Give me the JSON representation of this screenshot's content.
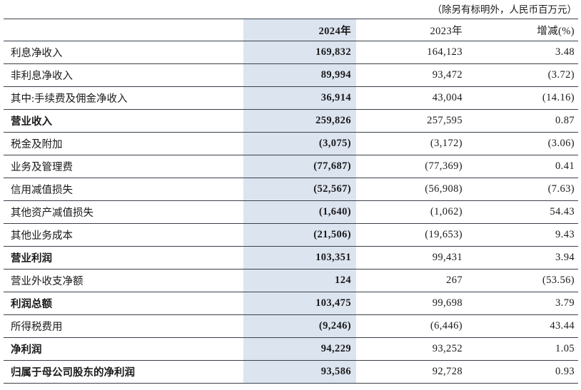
{
  "note": "（除另有标明外，人民币百万元）",
  "colors": {
    "highlight_2024_column": "#dce4f0",
    "grid_line": "#394049",
    "text": "#1a1a1a"
  },
  "table": {
    "label_header": "",
    "columns": [
      "2024年",
      "2023年",
      "增减(%)"
    ],
    "rows": [
      {
        "label": "利息净收入",
        "bold": false,
        "v2024": "169,832",
        "v2023": "164,123",
        "change": "3.48"
      },
      {
        "label": "非利息净收入",
        "bold": false,
        "v2024": "89,994",
        "v2023": "93,472",
        "change": "(3.72)"
      },
      {
        "label": "其中:手续费及佣金净收入",
        "bold": false,
        "v2024": "36,914",
        "v2023": "43,004",
        "change": "(14.16)"
      },
      {
        "label": "营业收入",
        "bold": true,
        "v2024": "259,826",
        "v2023": "257,595",
        "change": "0.87"
      },
      {
        "label": "税金及附加",
        "bold": false,
        "v2024": "(3,075)",
        "v2023": "(3,172)",
        "change": "(3.06)"
      },
      {
        "label": "业务及管理费",
        "bold": false,
        "v2024": "(77,687)",
        "v2023": "(77,369)",
        "change": "0.41"
      },
      {
        "label": "信用减值损失",
        "bold": false,
        "v2024": "(52,567)",
        "v2023": "(56,908)",
        "change": "(7.63)"
      },
      {
        "label": "其他资产减值损失",
        "bold": false,
        "v2024": "(1,640)",
        "v2023": "(1,062)",
        "change": "54.43"
      },
      {
        "label": "其他业务成本",
        "bold": false,
        "v2024": "(21,506)",
        "v2023": "(19,653)",
        "change": "9.43"
      },
      {
        "label": "营业利润",
        "bold": true,
        "v2024": "103,351",
        "v2023": "99,431",
        "change": "3.94"
      },
      {
        "label": "营业外收支净额",
        "bold": false,
        "v2024": "124",
        "v2023": "267",
        "change": "(53.56)"
      },
      {
        "label": "利润总额",
        "bold": true,
        "v2024": "103,475",
        "v2023": "99,698",
        "change": "3.79"
      },
      {
        "label": "所得税费用",
        "bold": false,
        "v2024": "(9,246)",
        "v2023": "(6,446)",
        "change": "43.44"
      },
      {
        "label": "净利润",
        "bold": true,
        "v2024": "94,229",
        "v2023": "93,252",
        "change": "1.05"
      },
      {
        "label": "归属于母公司股东的净利润",
        "bold": true,
        "v2024": "93,586",
        "v2023": "92,728",
        "change": "0.93"
      }
    ]
  }
}
